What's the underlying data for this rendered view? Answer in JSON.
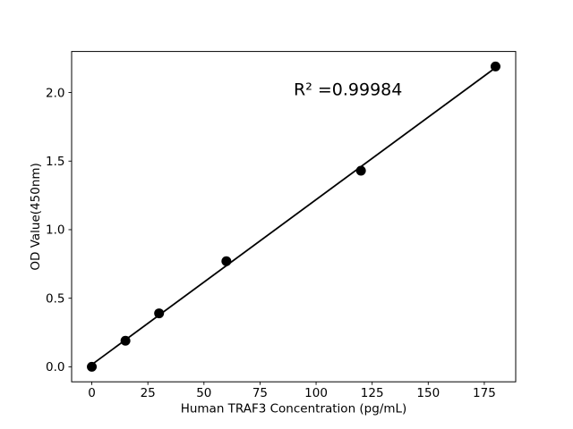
{
  "chart_data": {
    "type": "scatter",
    "xlabel": "Human TRAF3 Concentration (pg/mL)",
    "ylabel": "OD Value(450nm)",
    "x": [
      0,
      15,
      30,
      60,
      120,
      180
    ],
    "y": [
      0.0,
      0.19,
      0.39,
      0.77,
      1.43,
      2.19
    ],
    "series": [
      {
        "name": "standard-points",
        "type": "scatter",
        "marker": "filled-circle"
      },
      {
        "name": "linear-fit",
        "type": "line"
      }
    ],
    "trendline": {
      "slope": 0.01203,
      "intercept": 0.016,
      "x_start": 0,
      "x_end": 180
    },
    "annotation": {
      "text": "R² =0.99984",
      "x": 90,
      "y": 1.98
    },
    "xticks": {
      "values": [
        0,
        25,
        50,
        75,
        100,
        125,
        150,
        175
      ],
      "labels": [
        "0",
        "25",
        "50",
        "75",
        "100",
        "125",
        "150",
        "175"
      ]
    },
    "yticks": {
      "values": [
        0.0,
        0.5,
        1.0,
        1.5,
        2.0
      ],
      "labels": [
        "0.0",
        "0.5",
        "1.0",
        "1.5",
        "2.0"
      ]
    },
    "xlim": [
      -9,
      189
    ],
    "ylim": [
      -0.1095,
      2.2995
    ],
    "grid": false,
    "legend": null,
    "colors": {
      "marker": "#000000",
      "line": "#000000",
      "axis": "#000000",
      "text": "#000000",
      "background": "#ffffff"
    }
  }
}
